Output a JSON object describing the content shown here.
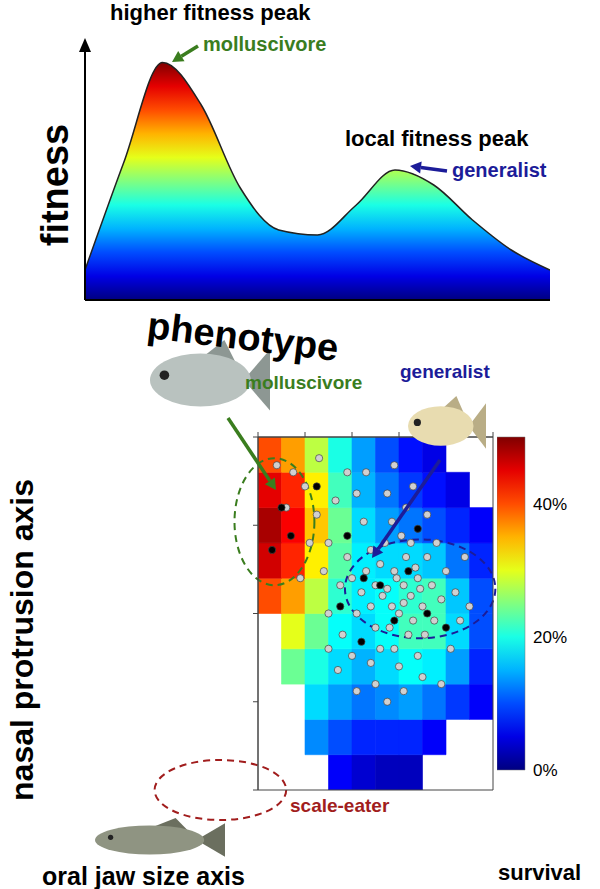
{
  "chart_data": [
    {
      "type": "area",
      "xlabel": "phenotype",
      "ylabel": "fitness",
      "x": [
        0,
        1,
        2,
        3,
        4,
        5,
        6,
        7,
        8,
        9,
        10,
        11,
        12
      ],
      "values": [
        0.12,
        0.55,
        0.95,
        0.78,
        0.45,
        0.28,
        0.26,
        0.38,
        0.52,
        0.46,
        0.32,
        0.2,
        0.12
      ],
      "xlim": [
        0,
        12
      ],
      "ylim": [
        0,
        1
      ],
      "tick_labels": false,
      "annotations": [
        {
          "text": "higher fitness peak",
          "label": "molluscivore",
          "color": "#3a7d1e"
        },
        {
          "text": "local fitness peak",
          "label": "generalist",
          "color": "#1c1c99"
        }
      ]
    },
    {
      "type": "scatter",
      "xlabel": "oral jaw size axis",
      "ylabel": "nasal protrusion axis",
      "xlim": [
        0,
        100
      ],
      "ylim": [
        0,
        100
      ],
      "xticks": [
        0,
        20,
        40,
        60,
        80,
        100
      ],
      "yticks": [
        0,
        25,
        50,
        75,
        100
      ],
      "tick_labels": false,
      "series": [
        {
          "color": "#d0d0d0",
          "marker": "circle",
          "x": [
            62,
            58,
            65,
            55,
            68,
            60,
            52,
            70,
            63,
            57,
            66,
            50,
            74,
            61,
            54,
            72,
            48,
            64,
            56,
            78,
            59,
            67,
            53,
            62,
            69,
            46,
            75,
            58,
            44,
            80,
            65,
            50,
            71,
            57,
            48,
            84,
            40,
            63,
            76,
            52,
            42,
            68,
            86,
            38,
            55,
            45,
            60,
            82,
            35,
            72,
            30,
            25,
            33,
            20,
            28,
            15,
            38,
            42,
            22,
            12,
            30,
            36,
            48,
            40,
            88,
            78,
            62,
            50,
            34,
            46,
            58,
            66,
            26,
            8,
            18,
            90,
            70,
            55,
            42,
            30
          ],
          "y": [
            58,
            62,
            55,
            57,
            60,
            50,
            64,
            52,
            66,
            52,
            48,
            58,
            58,
            72,
            70,
            66,
            52,
            44,
            46,
            54,
            60,
            63,
            55,
            53,
            57,
            62,
            48,
            40,
            56,
            62,
            70,
            46,
            44,
            76,
            68,
            56,
            60,
            80,
            70,
            40,
            50,
            38,
            48,
            66,
            84,
            76,
            35,
            40,
            58,
            78,
            70,
            78,
            82,
            86,
            62,
            90,
            90,
            84,
            70,
            80,
            50,
            44,
            36,
            38,
            66,
            30,
            28,
            30,
            34,
            90,
            92,
            86,
            94,
            92,
            60,
            52,
            32,
            25,
            28,
            40
          ]
        },
        {
          "color": "#000000",
          "marker": "circle",
          "x": [
            10,
            14,
            6,
            38,
            45,
            58,
            64,
            72,
            52,
            80,
            35,
            68,
            44,
            25
          ],
          "y": [
            80,
            72,
            68,
            72,
            60,
            48,
            62,
            50,
            58,
            46,
            52,
            74,
            42,
            86
          ]
        }
      ],
      "heatmap": {
        "x_edges": [
          0,
          10,
          20,
          30,
          40,
          50,
          60,
          70,
          80,
          90,
          100
        ],
        "y_edges": [
          0,
          10,
          20,
          30,
          40,
          50,
          60,
          70,
          80,
          90,
          100
        ],
        "cells": [
          [
            null,
            null,
            null,
            6,
            4,
            3,
            3,
            null,
            null,
            null
          ],
          [
            null,
            null,
            13,
            10,
            8,
            8,
            8,
            6,
            null,
            null
          ],
          [
            null,
            null,
            17,
            14,
            12,
            13,
            14,
            12,
            9,
            6
          ],
          [
            null,
            24,
            20,
            17,
            15,
            17,
            19,
            18,
            14,
            8
          ],
          [
            null,
            30,
            24,
            19,
            17,
            19,
            22,
            22,
            17,
            10
          ],
          [
            40,
            36,
            28,
            21,
            18,
            19,
            21,
            22,
            16,
            10
          ],
          [
            46,
            42,
            32,
            23,
            18,
            17,
            17,
            16,
            12,
            8
          ],
          [
            48,
            44,
            34,
            24,
            17,
            14,
            12,
            10,
            8,
            6
          ],
          [
            45,
            42,
            32,
            22,
            15,
            12,
            9,
            7,
            5,
            null
          ],
          [
            40,
            36,
            28,
            20,
            14,
            10,
            7,
            5,
            null,
            null
          ]
        ]
      },
      "colorbar": {
        "label": "survival",
        "range": [
          0,
          50
        ],
        "ticks": [
          {
            "value": 0,
            "label": "0%"
          },
          {
            "value": 20,
            "label": "20%"
          },
          {
            "value": 40,
            "label": "40%"
          }
        ]
      },
      "groups": [
        {
          "label": "molluscivore",
          "color": "#3a7d1e",
          "center": [
            7,
            76
          ],
          "radius": [
            17,
            18
          ]
        },
        {
          "label": "generalist",
          "color": "#1c1c99",
          "center": [
            69,
            57
          ],
          "radius": [
            32,
            14
          ]
        },
        {
          "label": "scale-eater",
          "color": "#a11d1d",
          "center": [
            -16,
            0
          ],
          "radius": [
            28,
            8.5
          ]
        }
      ]
    }
  ]
}
